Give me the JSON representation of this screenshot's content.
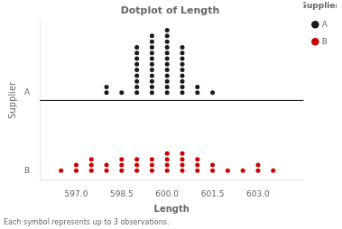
{
  "chart_data": {
    "type": "dotplot",
    "title": "Dotplot of Length",
    "xlabel": "Length",
    "ylabel": "Supplier",
    "footnote": "Each symbol represents up to 3 observations.",
    "legend": "upper right",
    "legend_title": "Supplier",
    "grid": false,
    "xlim": [
      595.8,
      604.5
    ],
    "xticks": [
      {
        "value": 597,
        "label": "597.0"
      },
      598.5,
      {
        "value": 600,
        "label": "600.0"
      },
      601.5,
      {
        "value": 603,
        "label": "603.0"
      }
    ],
    "series": [
      {
        "name": "A",
        "color": "#1a1a1a",
        "x": [
          598.0,
          598.5,
          599.0,
          599.5,
          600.0,
          600.5,
          601.0,
          601.5
        ],
        "values": [
          2,
          1,
          9,
          11,
          12,
          9,
          2,
          1
        ]
      },
      {
        "name": "B",
        "color": "#cc0000",
        "x": [
          596.5,
          597.0,
          597.5,
          598.0,
          598.5,
          599.0,
          599.5,
          600.0,
          600.5,
          601.0,
          601.5,
          602.0,
          602.5,
          603.0,
          603.5
        ],
        "values": [
          1,
          2,
          3,
          2,
          3,
          3,
          3,
          4,
          4,
          3,
          2,
          1,
          1,
          2,
          1
        ]
      }
    ]
  }
}
